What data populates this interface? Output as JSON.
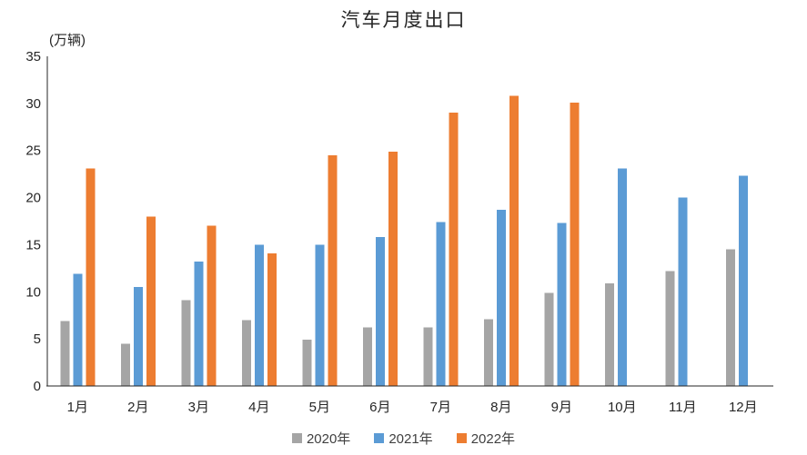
{
  "chart_data": {
    "type": "bar",
    "title": "汽车月度出口",
    "unit_label": "(万辆)",
    "categories": [
      "1月",
      "2月",
      "3月",
      "4月",
      "5月",
      "6月",
      "7月",
      "8月",
      "9月",
      "10月",
      "11月",
      "12月"
    ],
    "series": [
      {
        "name": "2020年",
        "color": "#a5a5a5",
        "values": [
          6.9,
          4.5,
          9.1,
          7.0,
          4.9,
          6.2,
          6.2,
          7.1,
          9.9,
          10.9,
          12.2,
          14.5
        ]
      },
      {
        "name": "2021年",
        "color": "#5b9bd5",
        "values": [
          11.9,
          10.5,
          13.2,
          15.0,
          15.0,
          15.8,
          17.4,
          18.7,
          17.3,
          23.1,
          20.0,
          22.3
        ]
      },
      {
        "name": "2022年",
        "color": "#ed7d31",
        "values": [
          23.1,
          18.0,
          17.0,
          14.1,
          24.5,
          24.9,
          29.0,
          30.8,
          30.1,
          null,
          null,
          null
        ]
      }
    ],
    "ylim": [
      0,
      35
    ],
    "ytick_interval": 5,
    "ytick_labels": [
      "0",
      "5",
      "10",
      "15",
      "20",
      "25",
      "30",
      "35"
    ],
    "grid": false,
    "legend_position": "bottom",
    "axis_color": "#262626",
    "text_color": "#262626"
  }
}
